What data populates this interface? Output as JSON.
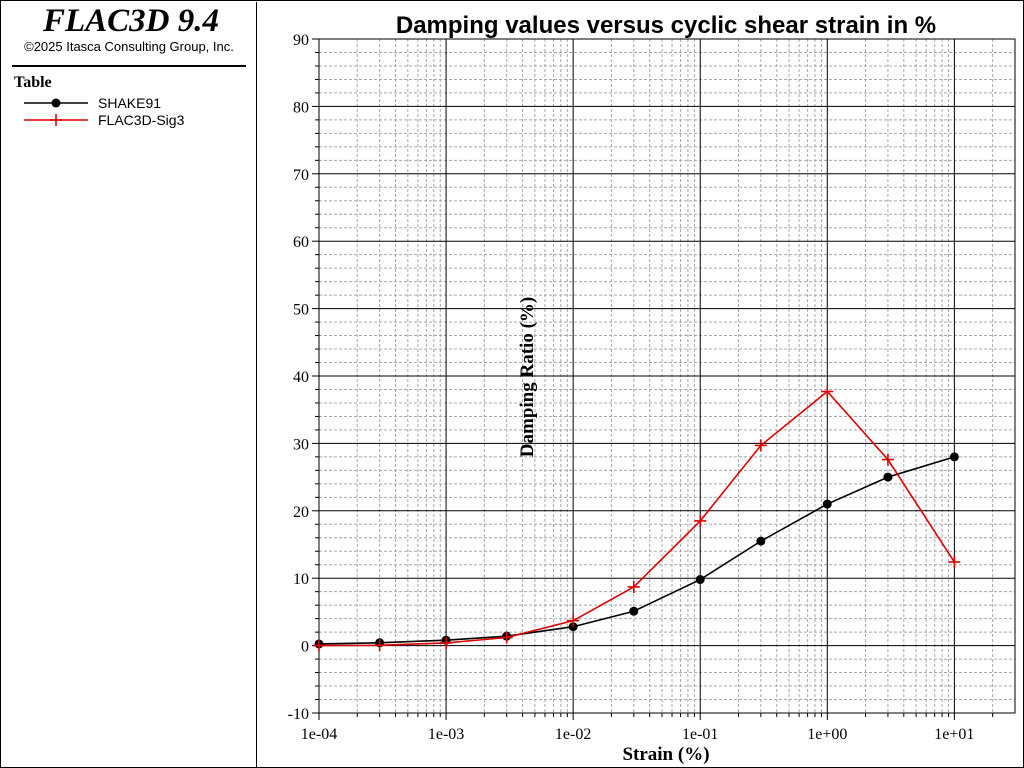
{
  "app": {
    "title": "FLAC3D 9.4",
    "copyright": "©2025 Itasca Consulting Group, Inc."
  },
  "legend": {
    "heading": "Table",
    "entries": [
      {
        "label": "SHAKE91",
        "color": "#000000",
        "marker": "filled-circle"
      },
      {
        "label": "FLAC3D-Sig3",
        "color": "#dd0000",
        "marker": "plus"
      }
    ]
  },
  "chart_data": {
    "type": "line",
    "title": "Damping values versus cyclic shear strain in %",
    "xlabel": "Strain (%)",
    "ylabel": "Damping Ratio (%)",
    "xscale": "log",
    "xlim": [
      0.0001,
      30
    ],
    "ylim": [
      -10,
      90
    ],
    "xticks": [
      0.0001,
      0.001,
      0.01,
      0.1,
      1,
      10
    ],
    "xtick_labels": [
      "1e-04",
      "1e-03",
      "1e-02",
      "1e-01",
      "1e+00",
      "1e+01"
    ],
    "yticks": [
      -10,
      0,
      10,
      20,
      30,
      40,
      50,
      60,
      70,
      80,
      90
    ],
    "ytick_labels": [
      "-10",
      "0",
      "10",
      "20",
      "30",
      "40",
      "50",
      "60",
      "70",
      "80",
      "90"
    ],
    "grid": true,
    "series": [
      {
        "name": "SHAKE91",
        "color": "#000000",
        "marker": "filled-circle",
        "x": [
          0.0001,
          0.0003,
          0.001,
          0.003,
          0.01,
          0.03,
          0.1,
          0.3,
          1,
          3,
          10
        ],
        "y": [
          0.24,
          0.42,
          0.8,
          1.4,
          2.8,
          5.1,
          9.8,
          15.5,
          21.0,
          25.0,
          28.0
        ]
      },
      {
        "name": "FLAC3D-Sig3",
        "color": "#dd0000",
        "marker": "plus",
        "x": [
          0.0001,
          0.0003,
          0.001,
          0.003,
          0.01,
          0.03,
          0.1,
          0.3,
          1,
          3,
          10
        ],
        "y": [
          0.0,
          0.05,
          0.4,
          1.2,
          3.7,
          8.7,
          18.5,
          29.7,
          37.7,
          27.6,
          12.4
        ]
      }
    ]
  }
}
